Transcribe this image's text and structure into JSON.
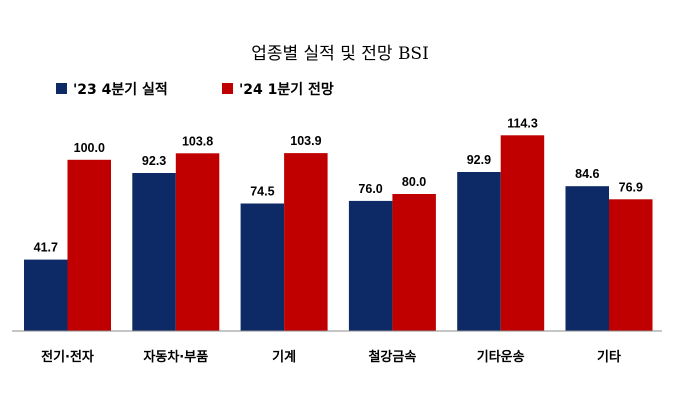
{
  "chart_data": {
    "type": "bar",
    "title": "업종별 실적 및 전망 BSI",
    "categories": [
      "전기·전자",
      "자동차·부품",
      "기계",
      "철강금속",
      "기타운송",
      "기타"
    ],
    "series": [
      {
        "name": "'23 4분기 실적",
        "color": "#0d2a66",
        "values": [
          41.7,
          92.3,
          74.5,
          76.0,
          92.9,
          84.6
        ]
      },
      {
        "name": "'24 1분기 전망",
        "color": "#c00000",
        "values": [
          100.0,
          103.8,
          103.9,
          80.0,
          114.3,
          76.9
        ]
      }
    ],
    "legend_position": "top-left",
    "grid": false,
    "value_labels": true,
    "ylim": [
      0,
      120
    ]
  }
}
